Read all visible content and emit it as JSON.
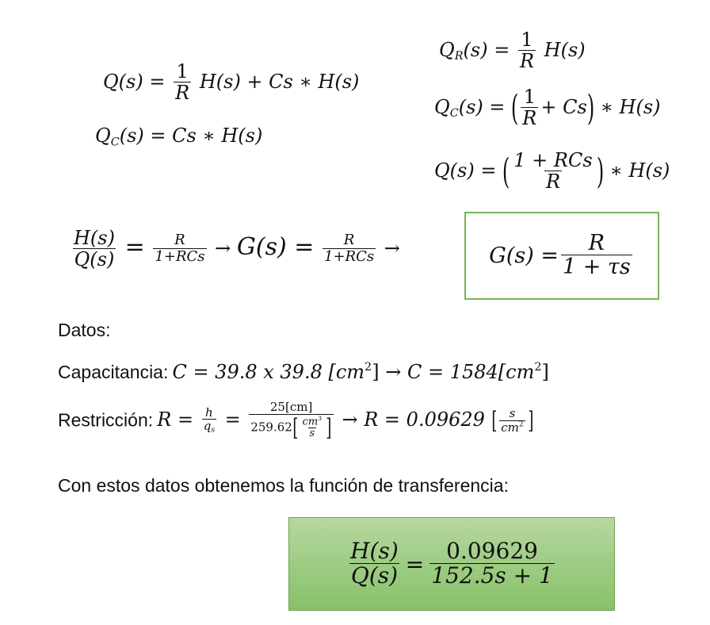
{
  "eq1": {
    "lhs": "Q(s) =",
    "num": "1",
    "den": "R",
    "rhs": "H(s) + Cs ∗ H(s)"
  },
  "eq2": {
    "text": "Q",
    "sub": "C",
    "rest": "(s) = Cs ∗ H(s)"
  },
  "eqR": {
    "lhs": "Q",
    "sub": "R",
    "mid": "(s) =",
    "num": "1",
    "den": "R",
    "rhs": "H(s)"
  },
  "eqC": {
    "lhs": "Q",
    "sub": "C",
    "mid": "(s) =",
    "num": "1",
    "den": "R",
    "inner": "+ Cs",
    "rhs": "∗ H(s)"
  },
  "eqQ": {
    "lhs": "Q(s) =",
    "num": "1 + RCs",
    "den": "R",
    "rhs": "∗ H(s)"
  },
  "transfer": {
    "f1_num": "H(s)",
    "f1_den": "Q(s)",
    "eq": "=",
    "f2_num": "R",
    "f2_den": "1+RCs",
    "arrow": "→",
    "g": "G(s) =",
    "f3_num": "R",
    "f3_den": "1+RCs",
    "arrow2": "→"
  },
  "boxed": {
    "lhs": "G(s) =",
    "num": "R",
    "den": "1 + τs"
  },
  "datos_label": "Datos:",
  "capacitancia": {
    "label": "Capacitancia:",
    "expr1": "C = 39.8 x 39.8 [cm",
    "exp": "2",
    "close": "]",
    "arrow": "→",
    "expr2": "C = 1584[cm",
    "exp2": "2",
    "close2": "]"
  },
  "restriccion": {
    "label": "Restricción:",
    "r": "R =",
    "h": "h",
    "qs": "q",
    "qs_sub": "s",
    "eq": "=",
    "num": "25[cm]",
    "den_val": "259.62",
    "den_inner_num": "cm",
    "den_inner_exp": "3",
    "den_inner_den": "s",
    "arrow": "→",
    "result": "R = 0.09629",
    "unit_num": "s",
    "unit_den": "cm",
    "unit_exp": "2"
  },
  "conclusion": "Con estos datos obtenemos la función de transferencia:",
  "final": {
    "num1": "H(s)",
    "den1": "Q(s)",
    "eq": "=",
    "num2": "0.09629",
    "den2": "152.5s + 1"
  }
}
